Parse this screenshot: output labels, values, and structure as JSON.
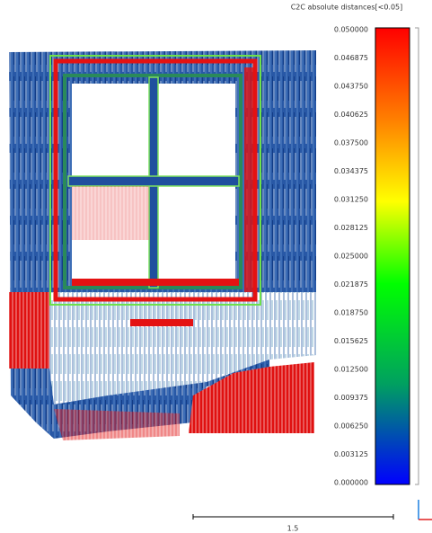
{
  "scale": {
    "title": "C2C absolute distances[<0.05]",
    "ticks": [
      "0.050000",
      "0.046875",
      "0.043750",
      "0.040625",
      "0.037500",
      "0.034375",
      "0.031250",
      "0.028125",
      "0.025000",
      "0.021875",
      "0.018750",
      "0.015625",
      "0.012500",
      "0.009375",
      "0.006250",
      "0.003125",
      "0.000000"
    ]
  },
  "scale_bar": {
    "label": "1.5"
  }
}
